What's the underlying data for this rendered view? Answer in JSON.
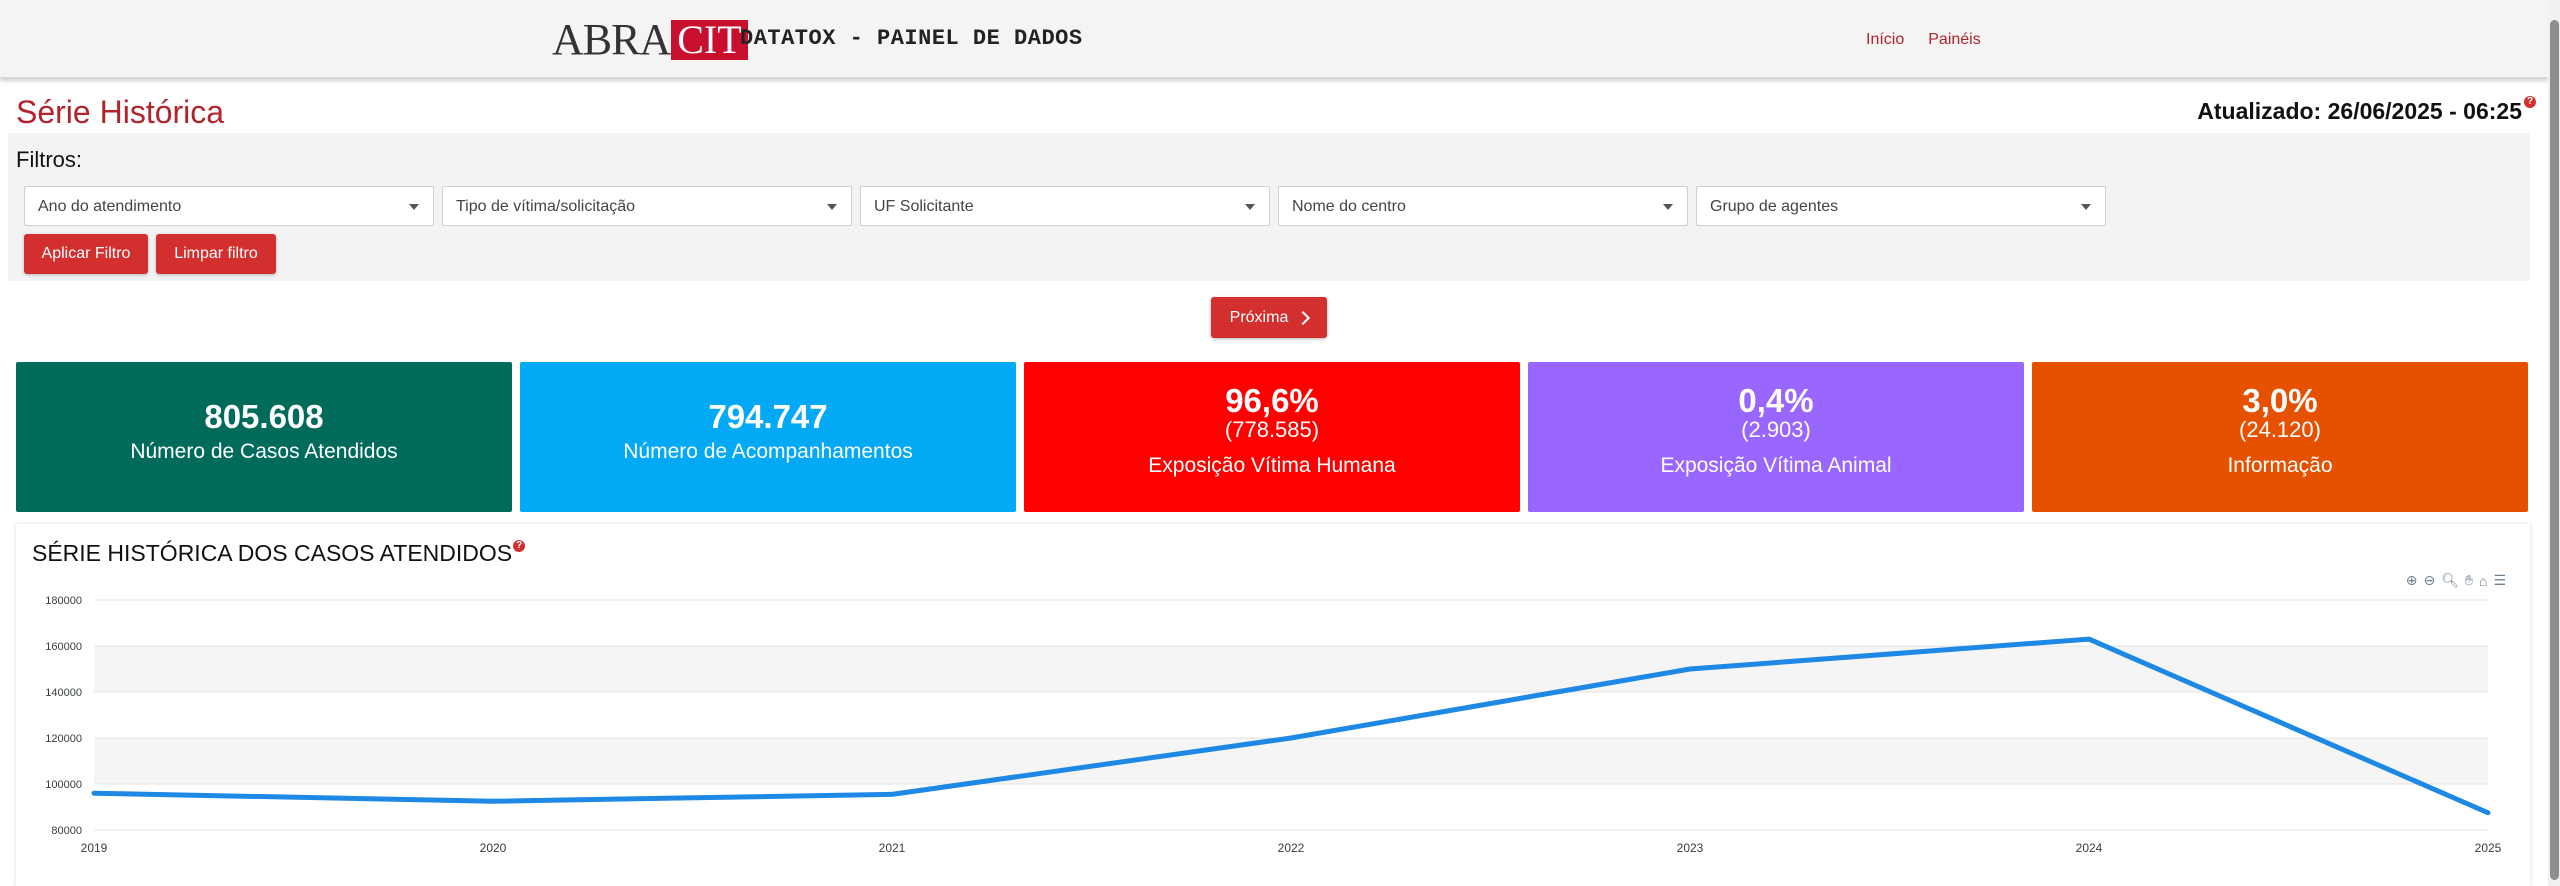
{
  "navbar": {
    "logo_abra": "ABRA",
    "logo_cit": "CIT",
    "brand_title": "DATATOX - PAINEL DE DADOS",
    "links": [
      "Início",
      "Painéis"
    ]
  },
  "header": {
    "page_title": "Série Histórica",
    "updated": "Atualizado: 26/06/2025 - 06:25",
    "help": "?"
  },
  "filters": {
    "label": "Filtros:",
    "selects": [
      "Ano do atendimento",
      "Tipo de vítima/solicitação",
      "UF Solicitante",
      "Nome do centro",
      "Grupo de agentes"
    ],
    "apply_label": "Aplicar Filtro",
    "clear_label": "Limpar filtro"
  },
  "next_label": "Próxima",
  "cards": [
    {
      "value": "805.608",
      "label": "Número de Casos Atendidos",
      "color": "#006b5b"
    },
    {
      "value": "794.747",
      "label": "Número de Acompanhamentos",
      "color": "#03a9f4"
    },
    {
      "value": "96,6%",
      "sub": "(778.585)",
      "label": "Exposição Vítima Humana",
      "color": "#ff0000"
    },
    {
      "value": "0,4%",
      "sub": "(2.903)",
      "label": "Exposição Vítima Animal",
      "color": "#9966ff"
    },
    {
      "value": "3,0%",
      "sub": "(24.120)",
      "label": "Informação",
      "color": "#e65100"
    }
  ],
  "chart_data": {
    "type": "line",
    "title": "SÉRIE HISTÓRICA DOS CASOS ATENDIDOS",
    "x": [
      "2019",
      "2020",
      "2021",
      "2022",
      "2023",
      "2024",
      "2025"
    ],
    "values": [
      96000,
      92500,
      95500,
      120000,
      150000,
      163000,
      87500
    ],
    "yticks": [
      80000,
      100000,
      120000,
      140000,
      160000,
      180000
    ],
    "ylim": [
      80000,
      180000
    ],
    "color": "#1e88e5",
    "grid": true
  }
}
